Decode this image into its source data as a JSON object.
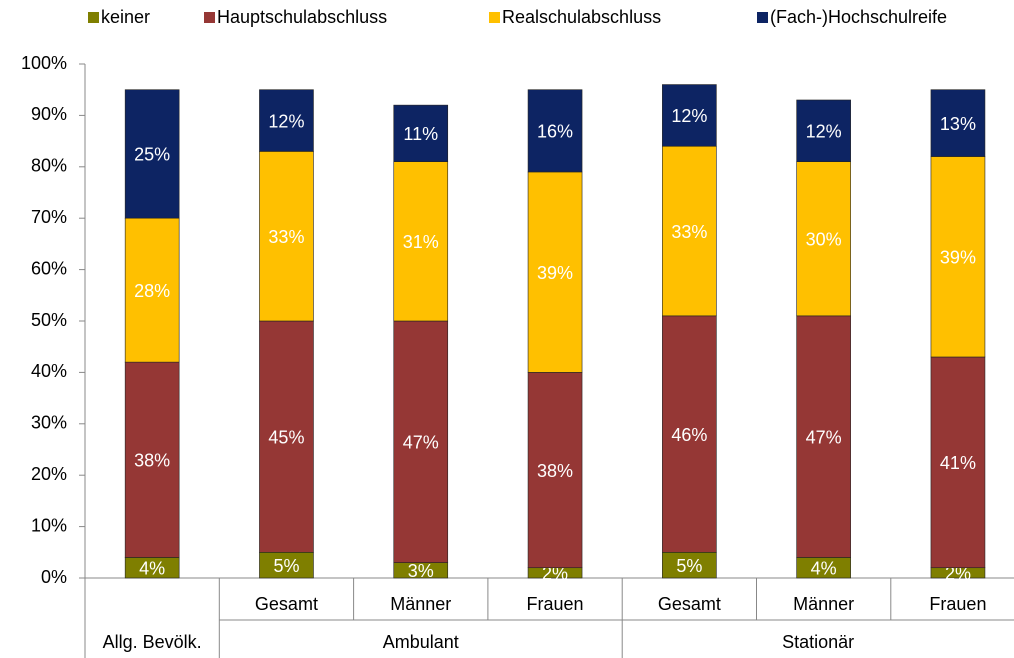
{
  "chart_data": {
    "type": "stacked_bar",
    "categories": [
      null,
      "Gesamt",
      "Männer",
      "Frauen",
      "Gesamt",
      "Männer",
      "Frauen"
    ],
    "category_groups": [
      "Allg. Bevölk.",
      "Ambulant",
      "Ambulant",
      "Ambulant",
      "Stationär",
      "Stationär",
      "Stationär"
    ],
    "series": [
      {
        "name": "keiner",
        "color": "#7f7f00",
        "values": [
          4,
          5,
          3,
          2,
          5,
          4,
          2
        ],
        "value_labels": [
          "4%",
          "5%",
          "3%",
          "2%",
          "5%",
          "4%",
          "2%"
        ]
      },
      {
        "name": "Hauptschulabschluss",
        "color": "#953735",
        "values": [
          38,
          45,
          47,
          38,
          46,
          47,
          41
        ],
        "value_labels": [
          "38%",
          "45%",
          "47%",
          "38%",
          "46%",
          "47%",
          "41%"
        ]
      },
      {
        "name": "Realschulabschluss",
        "color": "#ffc000",
        "values": [
          28,
          33,
          31,
          39,
          33,
          30,
          39
        ],
        "value_labels": [
          "28%",
          "33%",
          "31%",
          "39%",
          "33%",
          "30%",
          "39%"
        ]
      },
      {
        "name": "(Fach-)Hochschulreife",
        "color": "#0d2463",
        "values": [
          25,
          12,
          11,
          16,
          12,
          12,
          13
        ],
        "value_labels": [
          "25%",
          "12%",
          "11%",
          "16%",
          "12%",
          "12%",
          "13%"
        ]
      }
    ],
    "ylim": [
      0,
      100
    ],
    "yticks": [
      {
        "value": 0,
        "label": "0%"
      },
      {
        "value": 10,
        "label": "10%"
      },
      {
        "value": 20,
        "label": "20%"
      },
      {
        "value": 30,
        "label": "30%"
      },
      {
        "value": 40,
        "label": "40%"
      },
      {
        "value": 50,
        "label": "50%"
      },
      {
        "value": 60,
        "label": "60%"
      },
      {
        "value": 70,
        "label": "70%"
      },
      {
        "value": 80,
        "label": "80%"
      },
      {
        "value": 90,
        "label": "90%"
      },
      {
        "value": 100,
        "label": "100%"
      }
    ],
    "legend": "top",
    "grid": false
  }
}
